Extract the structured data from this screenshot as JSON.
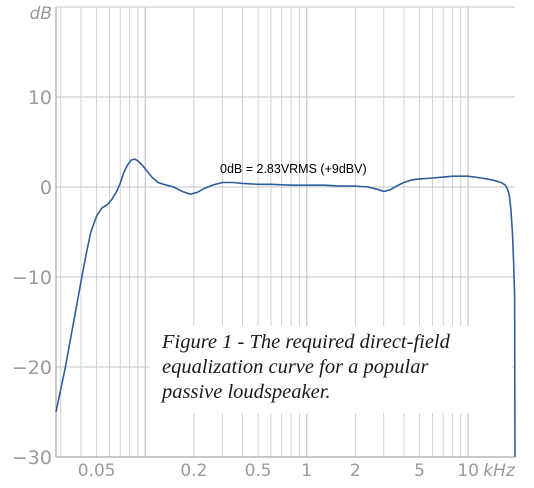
{
  "chart_data": {
    "type": "line",
    "ylabel": "dB",
    "xlabel": "kHz",
    "x_scale": "log",
    "xlim": [
      0.028,
      19.5
    ],
    "ylim": [
      -30,
      20
    ],
    "grid": true,
    "y_ticks": [
      {
        "value": 20,
        "label": "dB"
      },
      {
        "value": 10,
        "label": "10"
      },
      {
        "value": 0,
        "label": "0"
      },
      {
        "value": -10,
        "label": "−10"
      },
      {
        "value": -20,
        "label": "−20"
      },
      {
        "value": -30,
        "label": "−30"
      }
    ],
    "x_ticks": [
      {
        "value": 0.05,
        "label": "0.05"
      },
      {
        "value": 0.2,
        "label": "0.2"
      },
      {
        "value": 0.5,
        "label": "0.5"
      },
      {
        "value": 1,
        "label": "1"
      },
      {
        "value": 2,
        "label": "2"
      },
      {
        "value": 5,
        "label": "5"
      },
      {
        "value": 10,
        "label": "10"
      },
      {
        "value": 20,
        "label": "kHz"
      }
    ],
    "annotation": "0dB = 2.83VRMS (+9dBV)",
    "series": [
      {
        "color": "#2f5d9e",
        "x": [
          0.028,
          0.032,
          0.036,
          0.04,
          0.043,
          0.046,
          0.05,
          0.054,
          0.058,
          0.062,
          0.066,
          0.07,
          0.074,
          0.078,
          0.082,
          0.086,
          0.09,
          0.095,
          0.1,
          0.11,
          0.12,
          0.13,
          0.15,
          0.17,
          0.19,
          0.21,
          0.23,
          0.26,
          0.3,
          0.35,
          0.4,
          0.5,
          0.6,
          0.8,
          1.0,
          1.3,
          1.6,
          2.0,
          2.4,
          2.8,
          3.0,
          3.3,
          3.6,
          4.0,
          4.5,
          5.0,
          6.0,
          7.0,
          8.0,
          10.0,
          12.0,
          14.0,
          16.0,
          17.0,
          17.6,
          18.0,
          18.4,
          18.8,
          19.1,
          19.4,
          19.5
        ],
        "y": [
          -25.0,
          -20.0,
          -15.0,
          -10.5,
          -7.5,
          -5.0,
          -3.2,
          -2.3,
          -2.0,
          -1.4,
          -0.6,
          0.4,
          1.7,
          2.5,
          3.0,
          3.1,
          2.9,
          2.5,
          2.0,
          1.1,
          0.5,
          0.3,
          0.0,
          -0.5,
          -0.8,
          -0.6,
          -0.2,
          0.2,
          0.5,
          0.5,
          0.4,
          0.3,
          0.3,
          0.2,
          0.2,
          0.2,
          0.1,
          0.1,
          0.0,
          -0.3,
          -0.5,
          -0.3,
          0.1,
          0.5,
          0.8,
          0.9,
          1.0,
          1.1,
          1.2,
          1.2,
          1.0,
          0.8,
          0.5,
          0.2,
          -0.3,
          -1.0,
          -2.5,
          -5.0,
          -8.0,
          -12.0,
          -30.0
        ]
      }
    ]
  },
  "caption": {
    "line1": "Figure 1 - The required direct-field",
    "line2": "equalization curve for a popular",
    "line3": "passive loudspeaker."
  }
}
